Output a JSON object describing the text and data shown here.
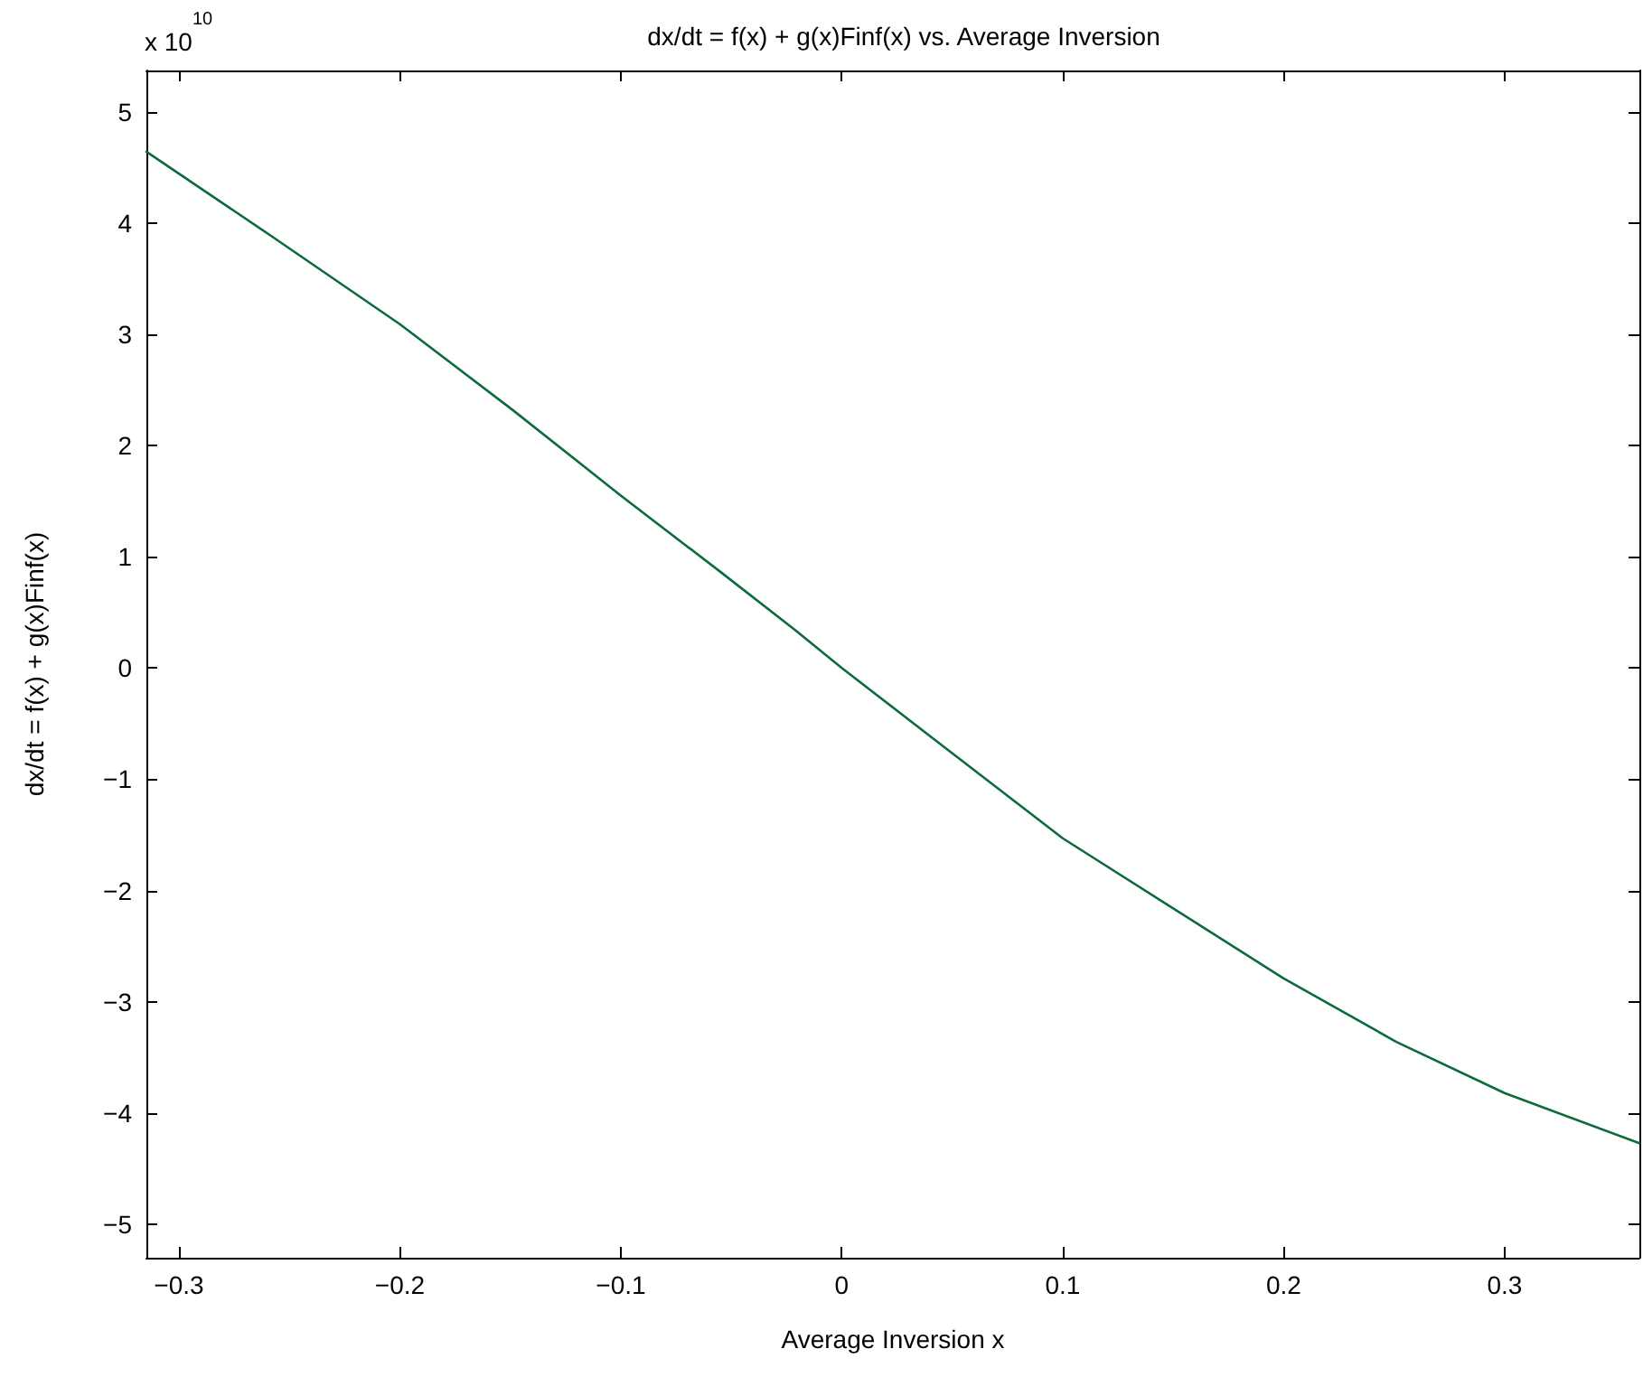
{
  "chart_data": {
    "type": "line",
    "title": "dx/dt = f(x) + g(x)Finf(x) vs. Average Inversion",
    "xlabel": "Average Inversion x",
    "ylabel": "dx/dt = f(x) + g(x)Finf(x)",
    "annotations": [
      "x 10$^{10}$"
    ],
    "series": [
      {
        "color": "#0b6b3a",
        "x": [
          -0.3147,
          -0.258,
          -0.2,
          -0.149,
          -0.1,
          -0.054,
          -0.021,
          0,
          0.049,
          0.1,
          0.15,
          0.2,
          0.251,
          0.3,
          0.361
        ],
        "values": [
          4.64,
          3.88,
          3.09,
          2.32,
          1.55,
          0.85,
          0.34,
          0,
          -0.75,
          -1.53,
          -2.16,
          -2.79,
          -3.36,
          -3.82,
          -4.27
        ]
      }
    ],
    "xlim": [
      -0.3147,
      0.361
    ],
    "xticks": [
      -0.3,
      -0.2,
      -0.1,
      0,
      0.1,
      0.2,
      0.3
    ],
    "ylim": [
      -5.3,
      5.37
    ],
    "yticks": [
      -5,
      -4,
      -3,
      -2,
      -1,
      0,
      1,
      2,
      3,
      4,
      5
    ],
    "grid": false,
    "marker": "none",
    "line_style": "solid"
  }
}
